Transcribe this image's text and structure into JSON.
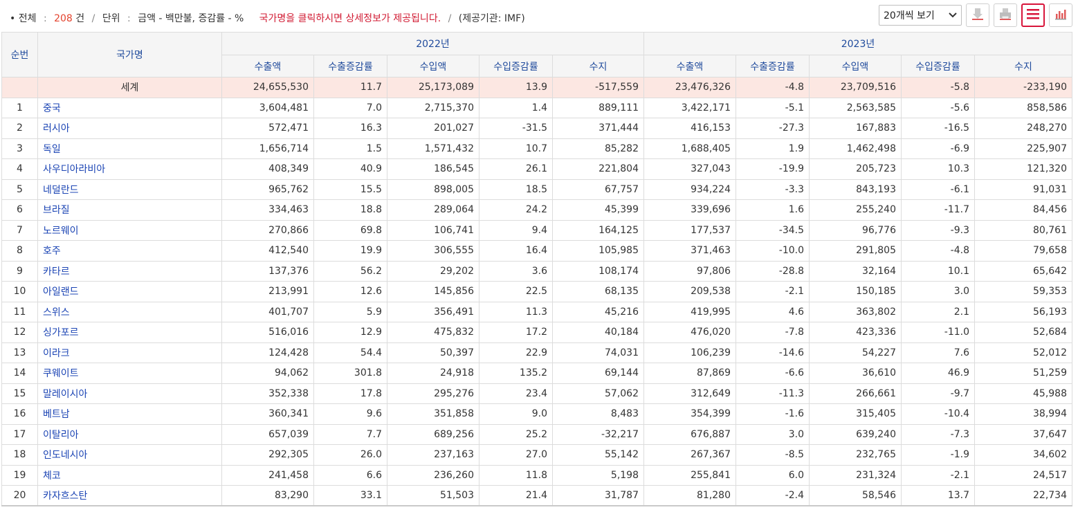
{
  "summary": {
    "total_label": "전체",
    "total_count": "208",
    "total_unit": "건",
    "unit_label": "단위",
    "unit_value": "금액 - 백만불, 증감률 - %",
    "notice": "국가명을 클릭하시면 상세정보가 제공됩니다.",
    "source": "(제공기관: IMF)"
  },
  "controls": {
    "page_size": "20개씩 보기",
    "icons": [
      "download-icon",
      "print-icon",
      "list-view-icon",
      "chart-view-icon"
    ]
  },
  "headers": {
    "rank": "순번",
    "country": "국가명",
    "years": [
      "2022년",
      "2023년"
    ],
    "columns": [
      "수출액",
      "수출증감률",
      "수입액",
      "수입증감률",
      "수지"
    ]
  },
  "world": {
    "name": "세계",
    "values": [
      "24,655,530",
      "11.7",
      "25,173,089",
      "13.9",
      "-517,559",
      "23,476,326",
      "-4.8",
      "23,709,516",
      "-5.8",
      "-233,190"
    ]
  },
  "rows": [
    {
      "rank": "1",
      "name": "중국",
      "values": [
        "3,604,481",
        "7.0",
        "2,715,370",
        "1.4",
        "889,111",
        "3,422,171",
        "-5.1",
        "2,563,585",
        "-5.6",
        "858,586"
      ]
    },
    {
      "rank": "2",
      "name": "러시아",
      "values": [
        "572,471",
        "16.3",
        "201,027",
        "-31.5",
        "371,444",
        "416,153",
        "-27.3",
        "167,883",
        "-16.5",
        "248,270"
      ]
    },
    {
      "rank": "3",
      "name": "독일",
      "values": [
        "1,656,714",
        "1.5",
        "1,571,432",
        "10.7",
        "85,282",
        "1,688,405",
        "1.9",
        "1,462,498",
        "-6.9",
        "225,907"
      ]
    },
    {
      "rank": "4",
      "name": "사우디아라비아",
      "values": [
        "408,349",
        "40.9",
        "186,545",
        "26.1",
        "221,804",
        "327,043",
        "-19.9",
        "205,723",
        "10.3",
        "121,320"
      ]
    },
    {
      "rank": "5",
      "name": "네덜란드",
      "values": [
        "965,762",
        "15.5",
        "898,005",
        "18.5",
        "67,757",
        "934,224",
        "-3.3",
        "843,193",
        "-6.1",
        "91,031"
      ]
    },
    {
      "rank": "6",
      "name": "브라질",
      "values": [
        "334,463",
        "18.8",
        "289,064",
        "24.2",
        "45,399",
        "339,696",
        "1.6",
        "255,240",
        "-11.7",
        "84,456"
      ]
    },
    {
      "rank": "7",
      "name": "노르웨이",
      "values": [
        "270,866",
        "69.8",
        "106,741",
        "9.4",
        "164,125",
        "177,537",
        "-34.5",
        "96,776",
        "-9.3",
        "80,761"
      ]
    },
    {
      "rank": "8",
      "name": "호주",
      "values": [
        "412,540",
        "19.9",
        "306,555",
        "16.4",
        "105,985",
        "371,463",
        "-10.0",
        "291,805",
        "-4.8",
        "79,658"
      ]
    },
    {
      "rank": "9",
      "name": "카타르",
      "values": [
        "137,376",
        "56.2",
        "29,202",
        "3.6",
        "108,174",
        "97,806",
        "-28.8",
        "32,164",
        "10.1",
        "65,642"
      ]
    },
    {
      "rank": "10",
      "name": "아일랜드",
      "values": [
        "213,991",
        "12.6",
        "145,856",
        "22.5",
        "68,135",
        "209,538",
        "-2.1",
        "150,185",
        "3.0",
        "59,353"
      ]
    },
    {
      "rank": "11",
      "name": "스위스",
      "values": [
        "401,707",
        "5.9",
        "356,491",
        "11.3",
        "45,216",
        "419,995",
        "4.6",
        "363,802",
        "2.1",
        "56,193"
      ]
    },
    {
      "rank": "12",
      "name": "싱가포르",
      "values": [
        "516,016",
        "12.9",
        "475,832",
        "17.2",
        "40,184",
        "476,020",
        "-7.8",
        "423,336",
        "-11.0",
        "52,684"
      ]
    },
    {
      "rank": "13",
      "name": "이라크",
      "values": [
        "124,428",
        "54.4",
        "50,397",
        "22.9",
        "74,031",
        "106,239",
        "-14.6",
        "54,227",
        "7.6",
        "52,012"
      ]
    },
    {
      "rank": "14",
      "name": "쿠웨이트",
      "values": [
        "94,062",
        "301.8",
        "24,918",
        "135.2",
        "69,144",
        "87,869",
        "-6.6",
        "36,610",
        "46.9",
        "51,259"
      ]
    },
    {
      "rank": "15",
      "name": "말레이시아",
      "values": [
        "352,338",
        "17.8",
        "295,276",
        "23.4",
        "57,062",
        "312,649",
        "-11.3",
        "266,661",
        "-9.7",
        "45,988"
      ]
    },
    {
      "rank": "16",
      "name": "베트남",
      "values": [
        "360,341",
        "9.6",
        "351,858",
        "9.0",
        "8,483",
        "354,399",
        "-1.6",
        "315,405",
        "-10.4",
        "38,994"
      ]
    },
    {
      "rank": "17",
      "name": "이탈리아",
      "values": [
        "657,039",
        "7.7",
        "689,256",
        "25.2",
        "-32,217",
        "676,887",
        "3.0",
        "639,240",
        "-7.3",
        "37,647"
      ]
    },
    {
      "rank": "18",
      "name": "인도네시아",
      "values": [
        "292,305",
        "26.0",
        "237,163",
        "27.0",
        "55,142",
        "267,367",
        "-8.5",
        "232,765",
        "-1.9",
        "34,602"
      ]
    },
    {
      "rank": "19",
      "name": "체코",
      "values": [
        "241,458",
        "6.6",
        "236,260",
        "11.8",
        "5,198",
        "255,841",
        "6.0",
        "231,324",
        "-2.1",
        "24,517"
      ]
    },
    {
      "rank": "20",
      "name": "카자흐스탄",
      "values": [
        "83,290",
        "33.1",
        "51,503",
        "21.4",
        "31,787",
        "81,280",
        "-2.4",
        "58,546",
        "13.7",
        "22,734"
      ]
    }
  ],
  "colors": {
    "accent": "#d8143a",
    "header_text": "#1f4a9c",
    "link": "#1b44b4",
    "world_row_bg": "#fce7e2"
  }
}
